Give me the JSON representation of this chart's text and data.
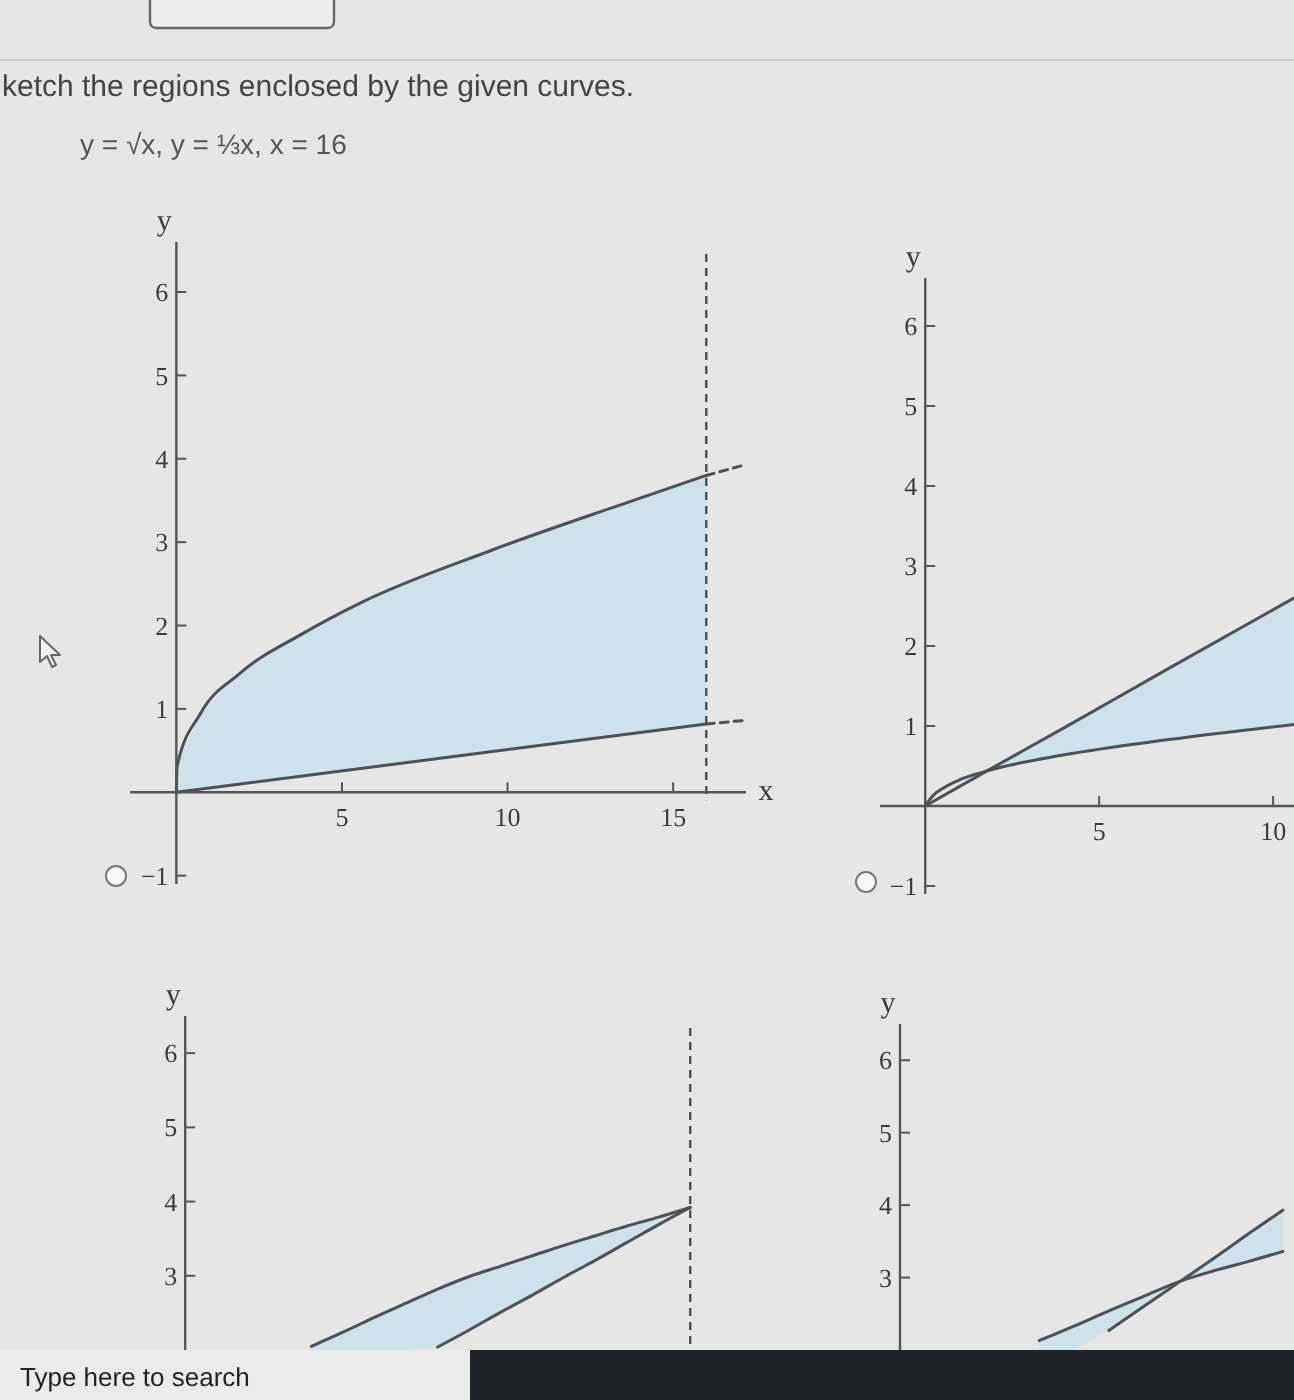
{
  "chart_data": [
    {
      "type": "other",
      "title": "ketch the regions enclosed by the given curves.",
      "subtitle": "y = √x, y = ⅓x, x = 16"
    },
    {
      "type": "line",
      "xlabel": "x",
      "ylabel": "y",
      "xlim": [
        -1.4,
        17.2
      ],
      "ylim": [
        -1.1,
        6.6
      ],
      "xticks": [
        5,
        10,
        15
      ],
      "yticks": [
        {
          "value": -1,
          "label": "−1"
        },
        1,
        2,
        3,
        4,
        5,
        6
      ],
      "ref_lines": [
        {
          "axis": "x",
          "value": 16,
          "line_style": "dashed",
          "color": "#4b5059"
        }
      ],
      "series": [
        {
          "color": "#4b5059",
          "x": [
            0,
            0.02,
            0.72,
            1.9,
            3.8,
            5.5,
            9.5,
            13.5,
            16
          ],
          "values": [
            0,
            0.31,
            0.94,
            1.42,
            1.9,
            2.26,
            2.9,
            3.46,
            3.8
          ],
          "lower": [
            0,
            0,
            0.04,
            0.1,
            0.19,
            0.28,
            0.49,
            0.69,
            0.82
          ],
          "upper": [
            0,
            0.31,
            0.94,
            1.42,
            1.9,
            2.26,
            2.9,
            3.46,
            3.8
          ]
        },
        {
          "color": "#4b5059",
          "x": [
            0,
            16
          ],
          "values": [
            0,
            0.82
          ]
        },
        {
          "color": "#4b5059",
          "line_style": "dashed",
          "x": [
            16,
            17.1
          ],
          "values": [
            3.8,
            3.92
          ]
        },
        {
          "color": "#4b5059",
          "line_style": "dashed",
          "x": [
            16,
            17.1
          ],
          "values": [
            0.82,
            0.86
          ]
        }
      ]
    },
    {
      "type": "line",
      "ylabel": "y",
      "xlim": [
        -1.3,
        10.6
      ],
      "ylim": [
        -1.1,
        6.6
      ],
      "xticks": [
        5,
        10
      ],
      "yticks": [
        {
          "value": -1,
          "label": "−1"
        },
        1,
        2,
        3,
        4,
        5,
        6
      ],
      "series": [
        {
          "color": "#4b5059",
          "x": [
            0,
            1.7,
            4,
            7,
            10.6
          ],
          "values": [
            0,
            0.42,
            0.98,
            1.72,
            2.6
          ],
          "lower": [
            null,
            0.42,
            0.64,
            0.83,
            1.02
          ],
          "upper": [
            null,
            0.42,
            0.98,
            1.72,
            2.6
          ]
        },
        {
          "color": "#4b5059",
          "x": [
            0,
            0.2,
            0.5,
            1,
            1.7,
            4,
            7,
            10.6
          ],
          "values": [
            0,
            0.12,
            0.22,
            0.33,
            0.43,
            0.64,
            0.83,
            1.02
          ]
        }
      ]
    },
    {
      "type": "line",
      "ylabel": "y",
      "tick_labels": "y",
      "categories": [
        null,
        null,
        null,
        null,
        null,
        null,
        null,
        null,
        null,
        null,
        null,
        null,
        null
      ],
      "ylim": [
        2.0,
        6.5
      ],
      "yticks": [
        3,
        4,
        5,
        6
      ],
      "series": [
        {
          "color": "#4b5059",
          "values": [
            2.05,
            2.24,
            2.44,
            2.63,
            2.82,
            2.99,
            3.13,
            3.27,
            3.41,
            3.54,
            3.67,
            3.79,
            3.92
          ],
          "lower": [
            2.0,
            2.0,
            2.0,
            2.0,
            2.04,
            2.27,
            2.51,
            2.74,
            2.98,
            3.21,
            3.45,
            3.69,
            3.92
          ],
          "upper": [
            2.05,
            2.24,
            2.44,
            2.63,
            2.82,
            2.99,
            3.13,
            3.27,
            3.41,
            3.54,
            3.67,
            3.79,
            3.92
          ]
        },
        {
          "color": "#4b5059",
          "values": [
            null,
            null,
            null,
            null,
            2.04,
            2.27,
            2.51,
            2.74,
            2.98,
            3.21,
            3.45,
            3.69,
            3.92
          ]
        }
      ]
    },
    {
      "type": "line",
      "ylabel": "y",
      "tick_labels": "y",
      "categories": [
        null,
        null,
        null,
        null,
        null,
        null,
        null,
        null
      ],
      "ylim": [
        2.0,
        6.5
      ],
      "yticks": [
        3,
        4,
        5,
        6
      ],
      "series": [
        {
          "color": "#4b5059",
          "values": [
            2.13,
            2.33,
            2.54,
            2.74,
            2.94,
            3.09,
            3.22,
            3.36
          ],
          "lower": [
            2.0,
            2.0,
            2.27,
            2.6,
            2.93,
            3.09,
            3.22,
            3.36
          ],
          "upper": [
            2.13,
            2.33,
            2.54,
            2.74,
            2.94,
            3.26,
            3.6,
            3.93
          ]
        },
        {
          "color": "#4b5059",
          "values": [
            null,
            null,
            2.27,
            2.6,
            2.93,
            3.26,
            3.6,
            3.93
          ]
        }
      ]
    },
    {
      "type": "other",
      "annotations": [
        "Type here to search"
      ]
    }
  ]
}
